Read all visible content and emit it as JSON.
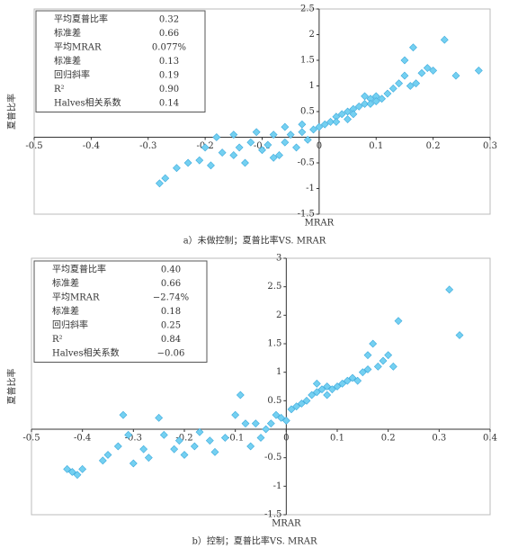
{
  "chart_data": [
    {
      "type": "scatter",
      "caption": "a）未做控制；夏普比率VS. MRAR",
      "x_label": "MRAR",
      "y_label": "夏普比率",
      "color": "#74d0f1",
      "xlim": [
        -0.5,
        0.3
      ],
      "ylim": [
        -1.5,
        2.5
      ],
      "xticks": [
        -0.5,
        -0.4,
        -0.3,
        -0.2,
        -0.1,
        0,
        0.1,
        0.2,
        0.3
      ],
      "yticks": [
        -1.5,
        -1,
        -0.5,
        0.5,
        1,
        1.5,
        2,
        2.5
      ],
      "stats": [
        {
          "label": "平均夏普比率",
          "value": "0.32"
        },
        {
          "label": "标准差",
          "value": "0.66"
        },
        {
          "label": "平均MRAR",
          "value": "0.077%"
        },
        {
          "label": "标准差",
          "value": "0.13"
        },
        {
          "label": "回归斜率",
          "value": "0.19"
        },
        {
          "label": "R²",
          "value": "0.90"
        },
        {
          "label": "Halves相关系数",
          "value": "0.14"
        }
      ],
      "x": [
        -0.28,
        -0.27,
        -0.25,
        -0.23,
        -0.21,
        -0.19,
        -0.17,
        -0.15,
        -0.14,
        -0.13,
        -0.12,
        -0.1,
        -0.09,
        -0.08,
        -0.07,
        -0.06,
        -0.05,
        -0.04,
        -0.03,
        -0.02,
        -0.01,
        0,
        -0.15,
        -0.11,
        -0.06,
        -0.03,
        -0.08,
        -0.2,
        -0.18,
        0.01,
        0.02,
        0.03,
        0.04,
        0.05,
        0.06,
        0.07,
        0.08,
        0.09,
        0.1,
        0.11,
        0.12,
        0.13,
        0.14,
        0.15,
        0.16,
        0.17,
        0.18,
        0.19,
        0.2,
        0.22,
        0.24,
        0.28,
        0.165,
        0.15,
        0.1,
        0.08,
        0.05,
        0.03,
        0.06,
        0.09
      ],
      "y": [
        -0.9,
        -0.8,
        -0.6,
        -0.5,
        -0.45,
        -0.55,
        -0.3,
        -0.35,
        -0.2,
        -0.5,
        -0.1,
        -0.25,
        -0.15,
        0.05,
        -0.35,
        -0.1,
        0.05,
        -0.2,
        0.1,
        -0.05,
        0.15,
        0.2,
        0.05,
        0.1,
        0.2,
        0.25,
        -0.4,
        -0.2,
        0,
        0.25,
        0.3,
        0.4,
        0.45,
        0.5,
        0.55,
        0.6,
        0.65,
        0.75,
        0.8,
        0.75,
        0.85,
        0.95,
        1.05,
        1.2,
        1,
        1.05,
        1.25,
        1.35,
        1.3,
        1.9,
        1.2,
        1.3,
        1.75,
        1.5,
        0.7,
        0.8,
        0.35,
        0.3,
        0.45,
        0.65
      ]
    },
    {
      "type": "scatter",
      "caption": "b）控制；夏普比率VS. MRAR",
      "x_label": "MRAR",
      "y_label": "夏普比率",
      "color": "#74d0f1",
      "xlim": [
        -0.5,
        0.4
      ],
      "ylim": [
        -1.5,
        3
      ],
      "xticks": [
        -0.5,
        -0.4,
        -0.3,
        -0.2,
        -0.1,
        0,
        0.1,
        0.2,
        0.3,
        0.4
      ],
      "yticks": [
        -1.5,
        -1,
        -0.5,
        0.5,
        1,
        1.5,
        2,
        2.5,
        3
      ],
      "stats": [
        {
          "label": "平均夏普比率",
          "value": "0.40"
        },
        {
          "label": "标准差",
          "value": "0.66"
        },
        {
          "label": "平均MRAR",
          "value": "−2.74%"
        },
        {
          "label": "标准差",
          "value": "0.18"
        },
        {
          "label": "回归斜率",
          "value": "0.25"
        },
        {
          "label": "R²",
          "value": "0.84"
        },
        {
          "label": "Halves相关系数",
          "value": "−0.06"
        }
      ],
      "x": [
        -0.43,
        -0.42,
        -0.41,
        -0.4,
        -0.36,
        -0.35,
        -0.33,
        -0.32,
        -0.31,
        -0.3,
        -0.28,
        -0.27,
        -0.25,
        -0.24,
        -0.22,
        -0.21,
        -0.2,
        -0.18,
        -0.17,
        -0.15,
        -0.14,
        -0.12,
        -0.1,
        -0.09,
        -0.08,
        -0.07,
        -0.06,
        -0.05,
        -0.04,
        -0.03,
        -0.02,
        -0.01,
        0,
        0.01,
        0.02,
        0.03,
        0.04,
        0.05,
        0.06,
        0.07,
        0.08,
        0.09,
        0.1,
        0.11,
        0.12,
        0.13,
        0.14,
        0.15,
        0.16,
        0.17,
        0.18,
        0.19,
        0.2,
        0.21,
        0.22,
        0.32,
        0.34,
        0.16,
        0.08,
        0.06
      ],
      "y": [
        -0.7,
        -0.75,
        -0.8,
        -0.7,
        -0.55,
        -0.45,
        -0.3,
        0.25,
        -0.1,
        -0.6,
        -0.35,
        -0.5,
        0.2,
        -0.1,
        -0.35,
        -0.2,
        -0.45,
        -0.3,
        -0.05,
        -0.2,
        -0.4,
        -0.15,
        0.25,
        0.6,
        0.1,
        -0.3,
        0.1,
        -0.15,
        0,
        0.1,
        0.25,
        0.2,
        0.15,
        0.35,
        0.4,
        0.45,
        0.5,
        0.6,
        0.65,
        0.7,
        0.75,
        0.7,
        0.75,
        0.8,
        0.85,
        0.9,
        0.85,
        1,
        1.05,
        1.5,
        1.1,
        1.2,
        1.3,
        1.1,
        1.9,
        2.45,
        1.65,
        1.3,
        0.6,
        0.8
      ]
    }
  ]
}
